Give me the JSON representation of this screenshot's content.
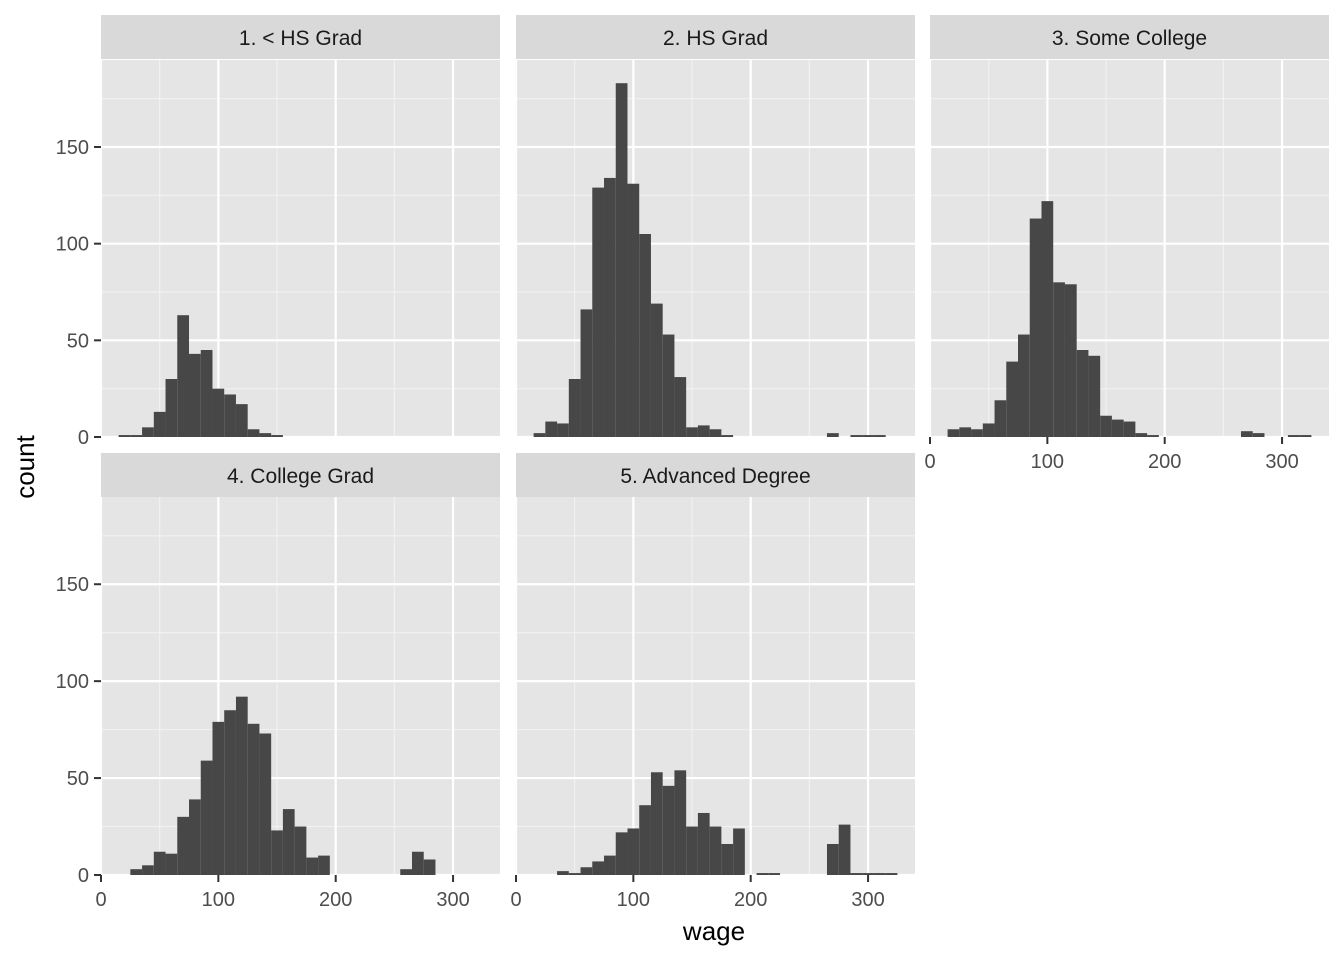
{
  "chart_data": {
    "type": "bar",
    "subtype": "faceted-histogram",
    "xlabel": "wage",
    "ylabel": "count",
    "xlim": [
      0,
      340
    ],
    "ylim": [
      0,
      195
    ],
    "x_ticks": [
      0,
      100,
      200,
      300
    ],
    "y_ticks": [
      0,
      50,
      100,
      150
    ],
    "bin_width": 10,
    "grid": true,
    "panel_background": "#e5e5e5",
    "strip_background": "#d9d9d9",
    "bar_color": "#474747",
    "panels": [
      {
        "label": "1. < HS Grad",
        "bins": [
          [
            20,
            1
          ],
          [
            30,
            1
          ],
          [
            40,
            5
          ],
          [
            50,
            13
          ],
          [
            60,
            30
          ],
          [
            70,
            63
          ],
          [
            80,
            43
          ],
          [
            90,
            45
          ],
          [
            100,
            25
          ],
          [
            110,
            22
          ],
          [
            120,
            17
          ],
          [
            130,
            4
          ],
          [
            140,
            2
          ],
          [
            150,
            1
          ]
        ]
      },
      {
        "label": "2. HS Grad",
        "bins": [
          [
            20,
            2
          ],
          [
            30,
            8
          ],
          [
            40,
            7
          ],
          [
            50,
            30
          ],
          [
            60,
            66
          ],
          [
            70,
            129
          ],
          [
            80,
            134
          ],
          [
            90,
            183
          ],
          [
            100,
            131
          ],
          [
            110,
            105
          ],
          [
            120,
            69
          ],
          [
            130,
            53
          ],
          [
            140,
            31
          ],
          [
            150,
            5
          ],
          [
            160,
            6
          ],
          [
            170,
            4
          ],
          [
            180,
            1
          ],
          [
            270,
            2
          ],
          [
            290,
            1
          ],
          [
            300,
            1
          ],
          [
            310,
            1
          ]
        ]
      },
      {
        "label": "3. Some College",
        "bins": [
          [
            20,
            4
          ],
          [
            30,
            5
          ],
          [
            40,
            4
          ],
          [
            50,
            7
          ],
          [
            60,
            19
          ],
          [
            70,
            39
          ],
          [
            80,
            53
          ],
          [
            90,
            113
          ],
          [
            100,
            122
          ],
          [
            110,
            80
          ],
          [
            120,
            79
          ],
          [
            130,
            45
          ],
          [
            140,
            42
          ],
          [
            150,
            11
          ],
          [
            160,
            9
          ],
          [
            170,
            8
          ],
          [
            180,
            2
          ],
          [
            190,
            1
          ],
          [
            270,
            3
          ],
          [
            280,
            2
          ],
          [
            310,
            1
          ],
          [
            320,
            1
          ]
        ]
      },
      {
        "label": "4. College Grad",
        "bins": [
          [
            30,
            3
          ],
          [
            40,
            5
          ],
          [
            50,
            12
          ],
          [
            60,
            11
          ],
          [
            70,
            30
          ],
          [
            80,
            39
          ],
          [
            90,
            59
          ],
          [
            100,
            79
          ],
          [
            110,
            85
          ],
          [
            120,
            92
          ],
          [
            130,
            78
          ],
          [
            140,
            73
          ],
          [
            150,
            23
          ],
          [
            160,
            34
          ],
          [
            170,
            25
          ],
          [
            180,
            9
          ],
          [
            190,
            10
          ],
          [
            260,
            3
          ],
          [
            270,
            12
          ],
          [
            280,
            8
          ]
        ]
      },
      {
        "label": "5. Advanced Degree",
        "bins": [
          [
            40,
            2
          ],
          [
            50,
            1
          ],
          [
            60,
            4
          ],
          [
            70,
            7
          ],
          [
            80,
            10
          ],
          [
            90,
            22
          ],
          [
            100,
            24
          ],
          [
            110,
            36
          ],
          [
            120,
            53
          ],
          [
            130,
            46
          ],
          [
            140,
            54
          ],
          [
            150,
            25
          ],
          [
            160,
            32
          ],
          [
            170,
            25
          ],
          [
            180,
            16
          ],
          [
            190,
            24
          ],
          [
            210,
            1
          ],
          [
            220,
            1
          ],
          [
            270,
            16
          ],
          [
            280,
            26
          ],
          [
            290,
            1
          ],
          [
            300,
            1
          ],
          [
            310,
            1
          ],
          [
            320,
            1
          ]
        ]
      }
    ]
  }
}
